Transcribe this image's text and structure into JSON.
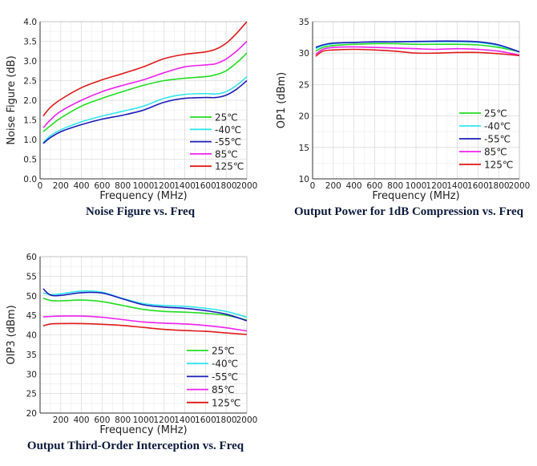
{
  "colors": {
    "25C": "#22dd22",
    "-40C": "#33e6ee",
    "-55C": "#1c1cb8",
    "85C": "#ee22ee",
    "125C": "#e01a1a",
    "title": "#0c1a3c"
  },
  "chart_data": [
    {
      "type": "line",
      "title": "Noise Figure vs. Freq",
      "xlabel": "Frequency  (MHz)",
      "ylabel": "Noise Figure (dB)",
      "xlim": [
        0,
        2000
      ],
      "ylim": [
        0,
        4
      ],
      "xticks": [
        "0",
        "200",
        "400",
        "600",
        "800",
        "1000",
        "1200",
        "1400",
        "1600",
        "1800",
        "2000"
      ],
      "yticks": [
        "0.0",
        "0.5",
        "1.0",
        "1.5",
        "2.0",
        "2.5",
        "3.0",
        "3.5",
        "4.0"
      ],
      "grid": true,
      "legend_position": "bottom-right",
      "x": [
        30,
        100,
        200,
        400,
        600,
        800,
        1000,
        1200,
        1400,
        1600,
        1700,
        1800,
        1900,
        2000
      ],
      "series": [
        {
          "name": "25℃",
          "key": "25C",
          "values": [
            1.2,
            1.35,
            1.55,
            1.85,
            2.05,
            2.22,
            2.38,
            2.5,
            2.56,
            2.6,
            2.65,
            2.75,
            2.95,
            3.2
          ]
        },
        {
          "name": "-40℃",
          "key": "-40C",
          "values": [
            0.92,
            1.1,
            1.25,
            1.45,
            1.6,
            1.72,
            1.85,
            2.05,
            2.15,
            2.17,
            2.16,
            2.22,
            2.38,
            2.6
          ]
        },
        {
          "name": "-55℃",
          "key": "-55C",
          "values": [
            0.9,
            1.05,
            1.2,
            1.38,
            1.52,
            1.62,
            1.75,
            1.95,
            2.05,
            2.07,
            2.07,
            2.13,
            2.28,
            2.5
          ]
        },
        {
          "name": "85℃",
          "key": "85C",
          "values": [
            1.3,
            1.5,
            1.72,
            2.0,
            2.22,
            2.38,
            2.52,
            2.7,
            2.85,
            2.9,
            2.93,
            3.05,
            3.25,
            3.5
          ]
        },
        {
          "name": "125℃",
          "key": "125C",
          "values": [
            1.6,
            1.82,
            2.02,
            2.32,
            2.52,
            2.68,
            2.85,
            3.06,
            3.17,
            3.23,
            3.3,
            3.45,
            3.7,
            4.0
          ]
        }
      ]
    },
    {
      "type": "line",
      "title": "Output Power for 1dB Compression vs. Freq",
      "xlabel": "Frequency  (MHz)",
      "ylabel": "OP1 (dBm)",
      "xlim": [
        0,
        2000
      ],
      "ylim": [
        10,
        35
      ],
      "xticks": [
        "0",
        "200",
        "400",
        "600",
        "800",
        "1000",
        "1200",
        "1400",
        "1600",
        "1800",
        "2000"
      ],
      "yticks": [
        "10",
        "15",
        "20",
        "25",
        "30",
        "35"
      ],
      "grid": true,
      "legend_position": "bottom-right",
      "x": [
        30,
        100,
        200,
        400,
        600,
        800,
        1000,
        1200,
        1400,
        1600,
        1800,
        2000
      ],
      "series": [
        {
          "name": "25℃",
          "key": "25C",
          "values": [
            30.3,
            30.9,
            31.2,
            31.4,
            31.5,
            31.5,
            31.4,
            31.4,
            31.4,
            31.3,
            30.9,
            30.2
          ]
        },
        {
          "name": "-40℃",
          "key": "-40C",
          "values": [
            30.7,
            31.2,
            31.5,
            31.7,
            31.75,
            31.8,
            31.8,
            31.8,
            31.8,
            31.7,
            31.2,
            30.2
          ]
        },
        {
          "name": "-55℃",
          "key": "-55C",
          "values": [
            30.9,
            31.3,
            31.6,
            31.7,
            31.8,
            31.8,
            31.85,
            31.9,
            31.9,
            31.8,
            31.3,
            30.2
          ]
        },
        {
          "name": "85℃",
          "key": "85C",
          "values": [
            29.8,
            30.6,
            30.9,
            31.0,
            30.9,
            30.8,
            30.7,
            30.6,
            30.7,
            30.6,
            30.3,
            29.7
          ]
        },
        {
          "name": "125℃",
          "key": "125C",
          "values": [
            29.5,
            30.3,
            30.5,
            30.6,
            30.5,
            30.3,
            30.0,
            30.0,
            30.1,
            30.1,
            29.9,
            29.6
          ]
        }
      ]
    },
    {
      "type": "line",
      "title": "Output Third-Order Interception vs. Freq",
      "xlabel": "Frequency  (MHz)",
      "ylabel": "OIP3 (dBm)",
      "xlim": [
        0,
        2000
      ],
      "ylim": [
        20,
        60
      ],
      "xticks": [
        "",
        "200",
        "400",
        "600",
        "800",
        "1000",
        "1200",
        "1400",
        "1600",
        "1800",
        "2000"
      ],
      "yticks": [
        "20",
        "25",
        "30",
        "35",
        "40",
        "45",
        "50",
        "55",
        "60"
      ],
      "grid": true,
      "legend_position": "bottom-right",
      "x": [
        30,
        100,
        200,
        400,
        600,
        800,
        1000,
        1200,
        1400,
        1600,
        1800,
        2000
      ],
      "series": [
        {
          "name": "25℃",
          "key": "25C",
          "values": [
            49.4,
            48.8,
            48.7,
            48.9,
            48.5,
            47.5,
            46.5,
            46.0,
            45.8,
            45.5,
            45.0,
            43.8
          ]
        },
        {
          "name": "-40℃",
          "key": "-40C",
          "values": [
            50.7,
            50.3,
            50.5,
            51.2,
            50.9,
            49.3,
            48.0,
            47.5,
            47.3,
            46.8,
            46.0,
            44.5
          ]
        },
        {
          "name": "-55℃",
          "key": "-55C",
          "values": [
            51.8,
            50.2,
            50.1,
            50.8,
            50.7,
            49.2,
            47.7,
            47.1,
            46.8,
            46.2,
            45.3,
            43.6
          ]
        },
        {
          "name": "85℃",
          "key": "85C",
          "values": [
            44.6,
            44.7,
            44.8,
            44.8,
            44.5,
            43.9,
            43.3,
            43.0,
            42.8,
            42.4,
            41.8,
            41.0
          ]
        },
        {
          "name": "125℃",
          "key": "125C",
          "values": [
            42.3,
            42.8,
            42.9,
            42.9,
            42.7,
            42.4,
            41.9,
            41.4,
            41.1,
            40.9,
            40.5,
            40.1
          ]
        }
      ]
    }
  ]
}
